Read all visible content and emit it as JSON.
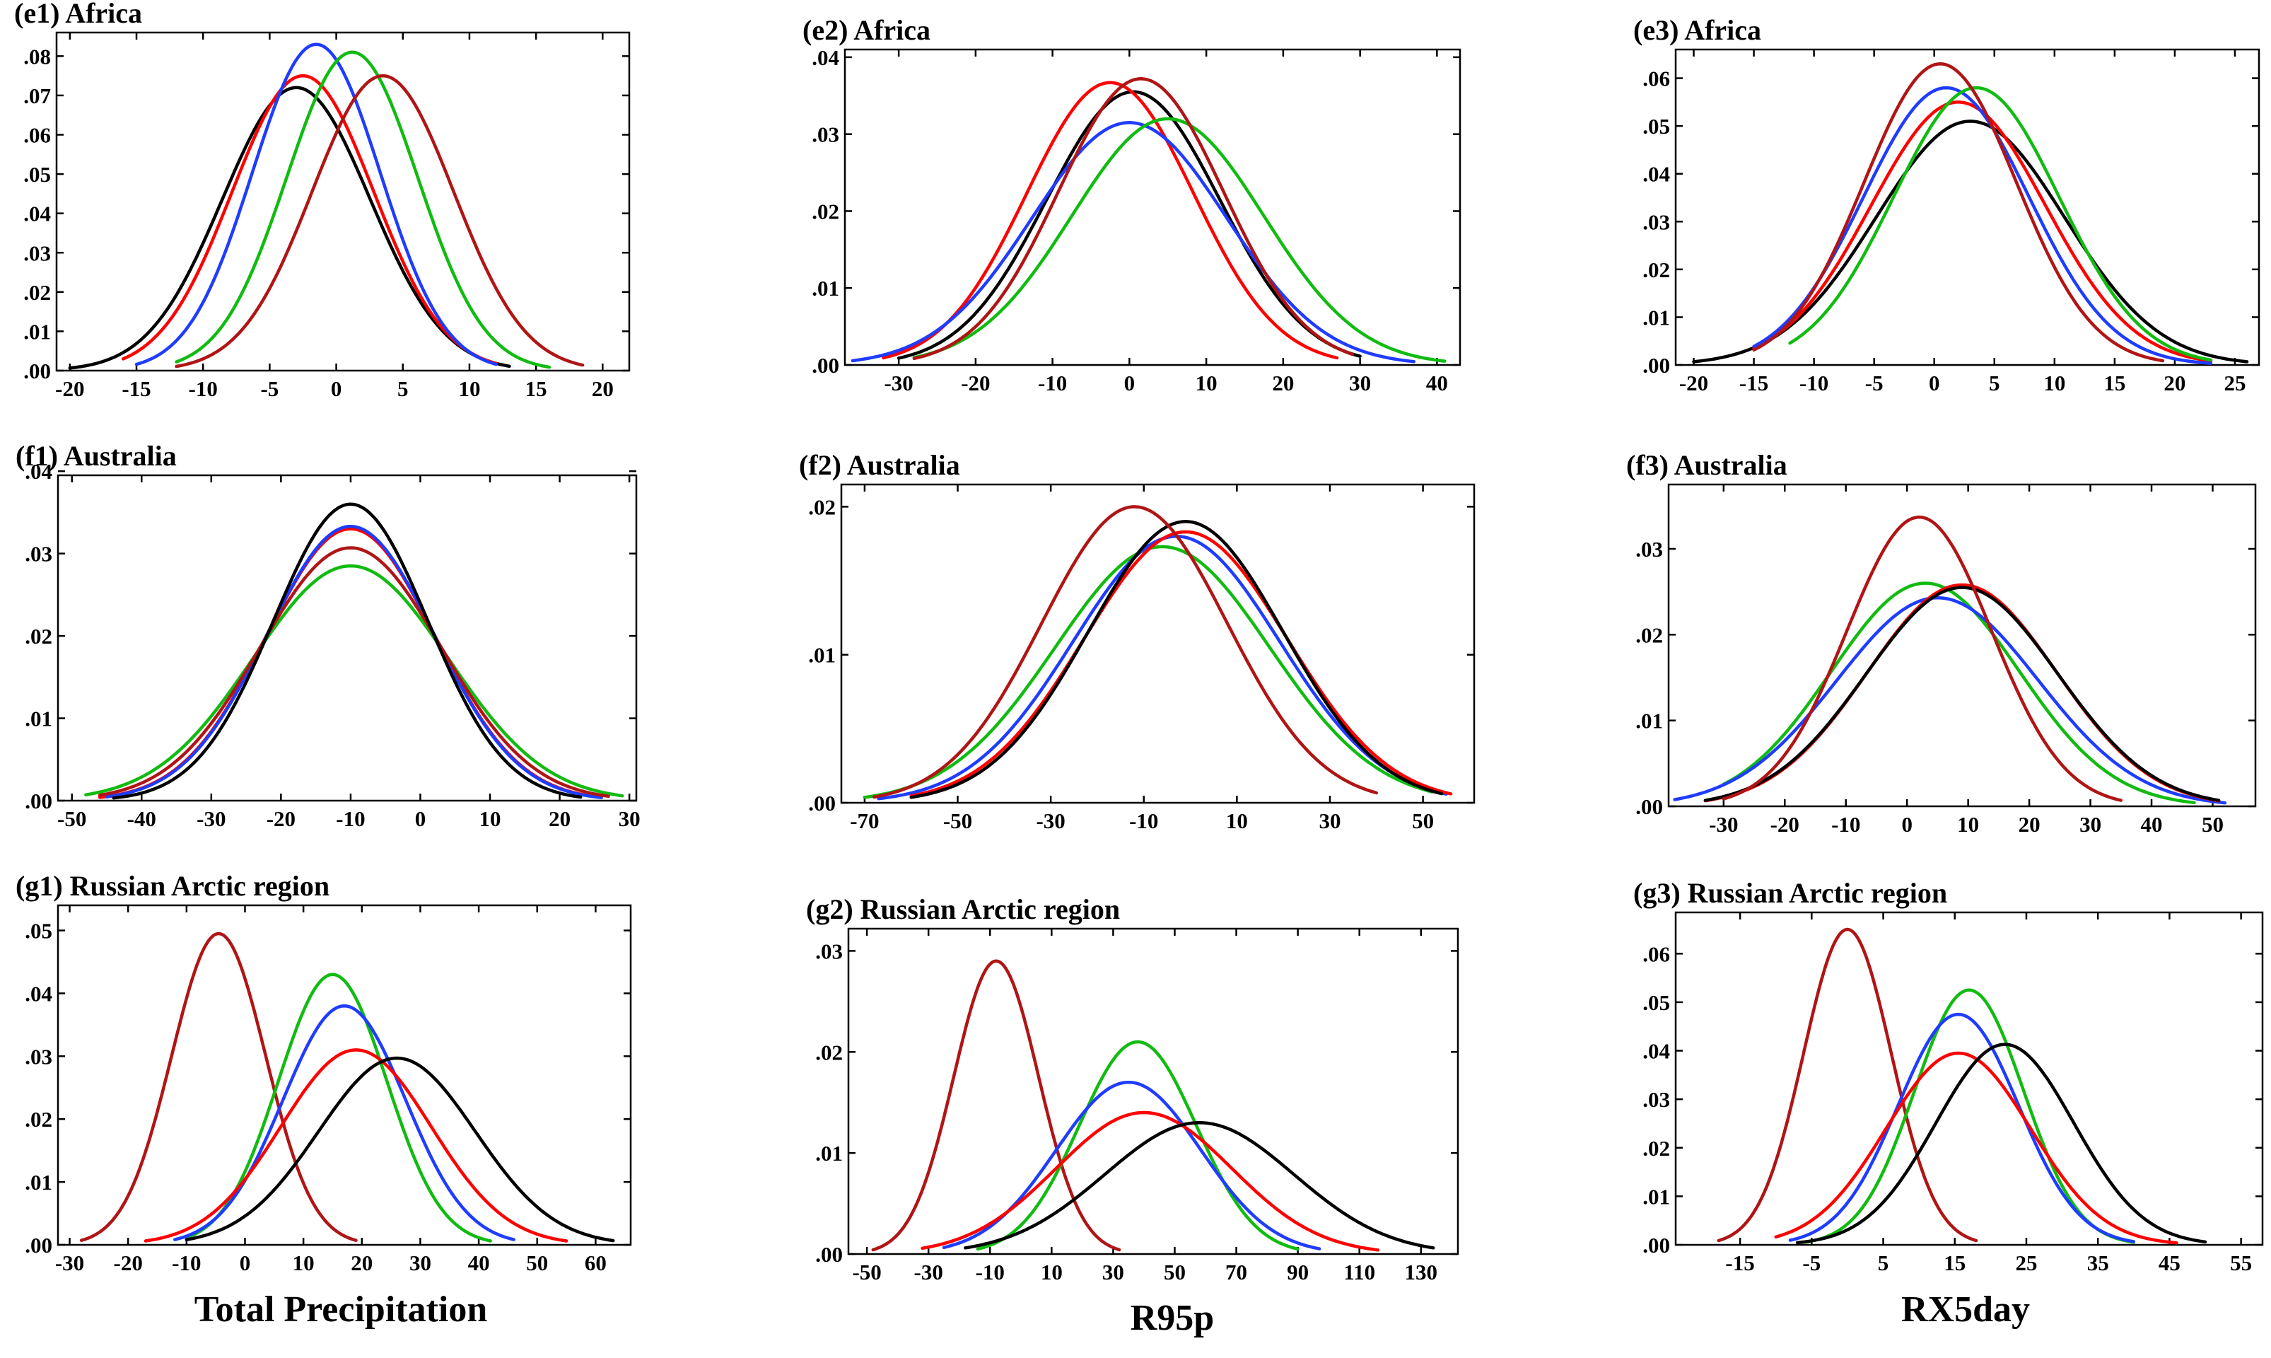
{
  "figure": {
    "column_labels": [
      "Total Precipitation",
      "R95p",
      "RX5day"
    ]
  },
  "series_colors": {
    "black": "#000000",
    "red": "#ff0000",
    "blue": "#1f3cff",
    "green": "#11bb11",
    "darkred": "#b01515"
  },
  "chart_data": [
    {
      "id": "e1",
      "type": "line",
      "title": "(e1) Africa",
      "xlim": [
        -21,
        22
      ],
      "ylim": [
        0,
        0.086
      ],
      "xticks": [
        -20,
        -15,
        -10,
        -5,
        0,
        5,
        10,
        15,
        20
      ],
      "xtick_labels": [
        "-20",
        "-15",
        "-10",
        "-5",
        "0",
        "5",
        "10",
        "15",
        "20"
      ],
      "yticks": [
        0,
        0.01,
        0.02,
        0.03,
        0.04,
        0.05,
        0.06,
        0.07,
        0.08
      ],
      "ytick_labels": [
        ".00",
        ".01",
        ".02",
        ".03",
        ".04",
        ".05",
        ".06",
        ".07",
        ".08"
      ],
      "series": [
        {
          "color": "black",
          "mean": -3.0,
          "peak": 0.072,
          "range": [
            -20,
            13
          ]
        },
        {
          "color": "red",
          "mean": -2.5,
          "peak": 0.075,
          "range": [
            -16,
            12
          ]
        },
        {
          "color": "blue",
          "mean": -1.5,
          "peak": 0.083,
          "range": [
            -15,
            12
          ]
        },
        {
          "color": "green",
          "mean": 1.2,
          "peak": 0.081,
          "range": [
            -12,
            16
          ]
        },
        {
          "color": "darkred",
          "mean": 3.5,
          "peak": 0.075,
          "range": [
            -12,
            18.5
          ]
        }
      ]
    },
    {
      "id": "e2",
      "type": "line",
      "title": "(e2) Africa",
      "xlim": [
        -37,
        43
      ],
      "ylim": [
        0,
        0.041
      ],
      "xticks": [
        -30,
        -20,
        -10,
        0,
        10,
        20,
        30,
        40
      ],
      "xtick_labels": [
        "-30",
        "-20",
        "-10",
        "0",
        "10",
        "20",
        "30",
        "40"
      ],
      "yticks": [
        0,
        0.01,
        0.02,
        0.03,
        0.04
      ],
      "ytick_labels": [
        ".00",
        ".01",
        ".02",
        ".03",
        ".04"
      ],
      "series": [
        {
          "color": "black",
          "mean": 0.5,
          "peak": 0.0355,
          "range": [
            -30,
            30
          ]
        },
        {
          "color": "red",
          "mean": -2.5,
          "peak": 0.0367,
          "range": [
            -32,
            27
          ]
        },
        {
          "color": "blue",
          "mean": 0.0,
          "peak": 0.0315,
          "range": [
            -36,
            37
          ]
        },
        {
          "color": "green",
          "mean": 5.0,
          "peak": 0.032,
          "range": [
            -28,
            41
          ]
        },
        {
          "color": "darkred",
          "mean": 1.5,
          "peak": 0.0372,
          "range": [
            -28,
            29
          ]
        }
      ]
    },
    {
      "id": "e3",
      "type": "line",
      "title": "(e3) Africa",
      "xlim": [
        -21.5,
        27
      ],
      "ylim": [
        0,
        0.066
      ],
      "xticks": [
        -20,
        -15,
        -10,
        -5,
        0,
        5,
        10,
        15,
        20,
        25
      ],
      "xtick_labels": [
        "-20",
        "-15",
        "-10",
        "-5",
        "0",
        "5",
        "10",
        "15",
        "20",
        "25"
      ],
      "yticks": [
        0,
        0.01,
        0.02,
        0.03,
        0.04,
        0.05,
        0.06
      ],
      "ytick_labels": [
        ".00",
        ".01",
        ".02",
        ".03",
        ".04",
        ".05",
        ".06"
      ],
      "series": [
        {
          "color": "black",
          "mean": 3.0,
          "peak": 0.051,
          "range": [
            -20,
            26
          ]
        },
        {
          "color": "red",
          "mean": 2.0,
          "peak": 0.055,
          "range": [
            -15,
            23
          ]
        },
        {
          "color": "blue",
          "mean": 1.0,
          "peak": 0.058,
          "range": [
            -15,
            23
          ]
        },
        {
          "color": "green",
          "mean": 3.5,
          "peak": 0.058,
          "range": [
            -12,
            23
          ]
        },
        {
          "color": "darkred",
          "mean": 0.5,
          "peak": 0.063,
          "range": [
            -15,
            19
          ]
        }
      ]
    },
    {
      "id": "f1",
      "type": "line",
      "title": "(f1) Australia",
      "xlim": [
        -52,
        31
      ],
      "ylim": [
        0,
        0.0395
      ],
      "xticks": [
        -50,
        -40,
        -30,
        -20,
        -10,
        0,
        10,
        20,
        30
      ],
      "xtick_labels": [
        "-50",
        "-40",
        "-30",
        "-20",
        "-10",
        "0",
        "10",
        "20",
        "30"
      ],
      "yticks": [
        0,
        0.01,
        0.02,
        0.03,
        0.04
      ],
      "ytick_labels": [
        ".00",
        ".01",
        ".02",
        ".03",
        ".04"
      ],
      "series": [
        {
          "color": "green",
          "mean": -10,
          "peak": 0.0285,
          "range": [
            -48,
            29
          ]
        },
        {
          "color": "red",
          "mean": -10,
          "peak": 0.033,
          "range": [
            -46,
            24
          ]
        },
        {
          "color": "blue",
          "mean": -10,
          "peak": 0.0333,
          "range": [
            -45,
            26
          ]
        },
        {
          "color": "darkred",
          "mean": -10,
          "peak": 0.0307,
          "range": [
            -46,
            27
          ]
        },
        {
          "color": "black",
          "mean": -10,
          "peak": 0.036,
          "range": [
            -44,
            23
          ]
        }
      ]
    },
    {
      "id": "f2",
      "type": "line",
      "title": "(f2) Australia",
      "xlim": [
        -75,
        61
      ],
      "ylim": [
        0,
        0.0215
      ],
      "xticks": [
        -70,
        -50,
        -30,
        -10,
        10,
        30,
        50
      ],
      "xtick_labels": [
        "-70",
        "-50",
        "-30",
        "-10",
        "10",
        "30",
        "50"
      ],
      "yticks": [
        0,
        0.01,
        0.02
      ],
      "ytick_labels": [
        ".00",
        ".01",
        ".02"
      ],
      "series": [
        {
          "color": "green",
          "mean": -6,
          "peak": 0.0173,
          "range": [
            -70,
            52
          ]
        },
        {
          "color": "blue",
          "mean": -3,
          "peak": 0.018,
          "range": [
            -67,
            55
          ]
        },
        {
          "color": "red",
          "mean": -1,
          "peak": 0.0183,
          "range": [
            -60,
            56
          ]
        },
        {
          "color": "black",
          "mean": -1,
          "peak": 0.019,
          "range": [
            -60,
            54
          ]
        },
        {
          "color": "darkred",
          "mean": -12,
          "peak": 0.02,
          "range": [
            -68,
            40
          ]
        }
      ]
    },
    {
      "id": "f3",
      "type": "line",
      "title": "(f3) Australia",
      "xlim": [
        -39,
        57
      ],
      "ylim": [
        0,
        0.0375
      ],
      "xticks": [
        -30,
        -20,
        -10,
        0,
        10,
        20,
        30,
        40,
        50
      ],
      "xtick_labels": [
        "-30",
        "-20",
        "-10",
        "0",
        "10",
        "20",
        "30",
        "40",
        "50"
      ],
      "yticks": [
        0,
        0.01,
        0.02,
        0.03
      ],
      "ytick_labels": [
        ".00",
        ".01",
        ".02",
        ".03"
      ],
      "series": [
        {
          "color": "green",
          "mean": 3,
          "peak": 0.026,
          "range": [
            -30,
            47
          ]
        },
        {
          "color": "blue",
          "mean": 5,
          "peak": 0.0243,
          "range": [
            -38,
            52
          ]
        },
        {
          "color": "red",
          "mean": 9,
          "peak": 0.0258,
          "range": [
            -33,
            51
          ]
        },
        {
          "color": "black",
          "mean": 9,
          "peak": 0.0255,
          "range": [
            -33,
            51
          ]
        },
        {
          "color": "darkred",
          "mean": 2,
          "peak": 0.0337,
          "range": [
            -30,
            35
          ]
        }
      ]
    },
    {
      "id": "g1",
      "type": "line",
      "title": "(g1) Russian Arctic region",
      "xlim": [
        -32,
        66
      ],
      "ylim": [
        0,
        0.054
      ],
      "xticks": [
        -30,
        -20,
        -10,
        0,
        10,
        20,
        30,
        40,
        50,
        60
      ],
      "xtick_labels": [
        "-30",
        "-20",
        "-10",
        "0",
        "10",
        "20",
        "30",
        "40",
        "50",
        "60"
      ],
      "yticks": [
        0,
        0.01,
        0.02,
        0.03,
        0.04,
        0.05
      ],
      "ytick_labels": [
        ".00",
        ".01",
        ".02",
        ".03",
        ".04",
        ".05"
      ],
      "series": [
        {
          "color": "darkred",
          "mean": -4.5,
          "peak": 0.0495,
          "range": [
            -28,
            19
          ]
        },
        {
          "color": "green",
          "mean": 15,
          "peak": 0.043,
          "range": [
            -10,
            42
          ]
        },
        {
          "color": "blue",
          "mean": 17,
          "peak": 0.038,
          "range": [
            -12,
            46
          ]
        },
        {
          "color": "red",
          "mean": 19,
          "peak": 0.031,
          "range": [
            -17,
            55
          ]
        },
        {
          "color": "black",
          "mean": 26,
          "peak": 0.0297,
          "range": [
            -10,
            63
          ]
        }
      ]
    },
    {
      "id": "g2",
      "type": "line",
      "title": "(g2) Russian Arctic region",
      "xlim": [
        -56,
        142
      ],
      "ylim": [
        0,
        0.0322
      ],
      "xticks": [
        -50,
        -30,
        -10,
        10,
        30,
        50,
        70,
        90,
        110,
        130
      ],
      "xtick_labels": [
        "-50",
        "-30",
        "-10",
        "10",
        "30",
        "50",
        "70",
        "90",
        "110",
        "130"
      ],
      "yticks": [
        0,
        0.01,
        0.02,
        0.03
      ],
      "ytick_labels": [
        ".00",
        ".01",
        ".02",
        ".03"
      ],
      "series": [
        {
          "color": "darkred",
          "mean": -8,
          "peak": 0.029,
          "range": [
            -48,
            32
          ]
        },
        {
          "color": "green",
          "mean": 38,
          "peak": 0.021,
          "range": [
            -14,
            90
          ]
        },
        {
          "color": "blue",
          "mean": 35,
          "peak": 0.017,
          "range": [
            -25,
            97
          ]
        },
        {
          "color": "red",
          "mean": 40,
          "peak": 0.014,
          "range": [
            -32,
            116
          ]
        },
        {
          "color": "black",
          "mean": 58,
          "peak": 0.013,
          "range": [
            -18,
            134
          ]
        }
      ]
    },
    {
      "id": "g3",
      "type": "line",
      "title": "(g3) Russian Arctic region",
      "xlim": [
        -24,
        58
      ],
      "ylim": [
        0,
        0.0685
      ],
      "xticks": [
        -15,
        -5,
        5,
        15,
        25,
        35,
        45,
        55
      ],
      "xtick_labels": [
        "-15",
        "-5",
        "5",
        "15",
        "25",
        "35",
        "45",
        "55"
      ],
      "yticks": [
        0,
        0.01,
        0.02,
        0.03,
        0.04,
        0.05,
        0.06
      ],
      "ytick_labels": [
        ".00",
        ".01",
        ".02",
        ".03",
        ".04",
        ".05",
        ".06"
      ],
      "series": [
        {
          "color": "darkred",
          "mean": 0,
          "peak": 0.065,
          "range": [
            -18,
            18
          ]
        },
        {
          "color": "green",
          "mean": 17,
          "peak": 0.0525,
          "range": [
            -6,
            40
          ]
        },
        {
          "color": "blue",
          "mean": 15.5,
          "peak": 0.0475,
          "range": [
            -8,
            40
          ]
        },
        {
          "color": "red",
          "mean": 15.5,
          "peak": 0.0395,
          "range": [
            -10,
            46
          ]
        },
        {
          "color": "black",
          "mean": 22,
          "peak": 0.0413,
          "range": [
            -7,
            50
          ]
        }
      ]
    }
  ]
}
